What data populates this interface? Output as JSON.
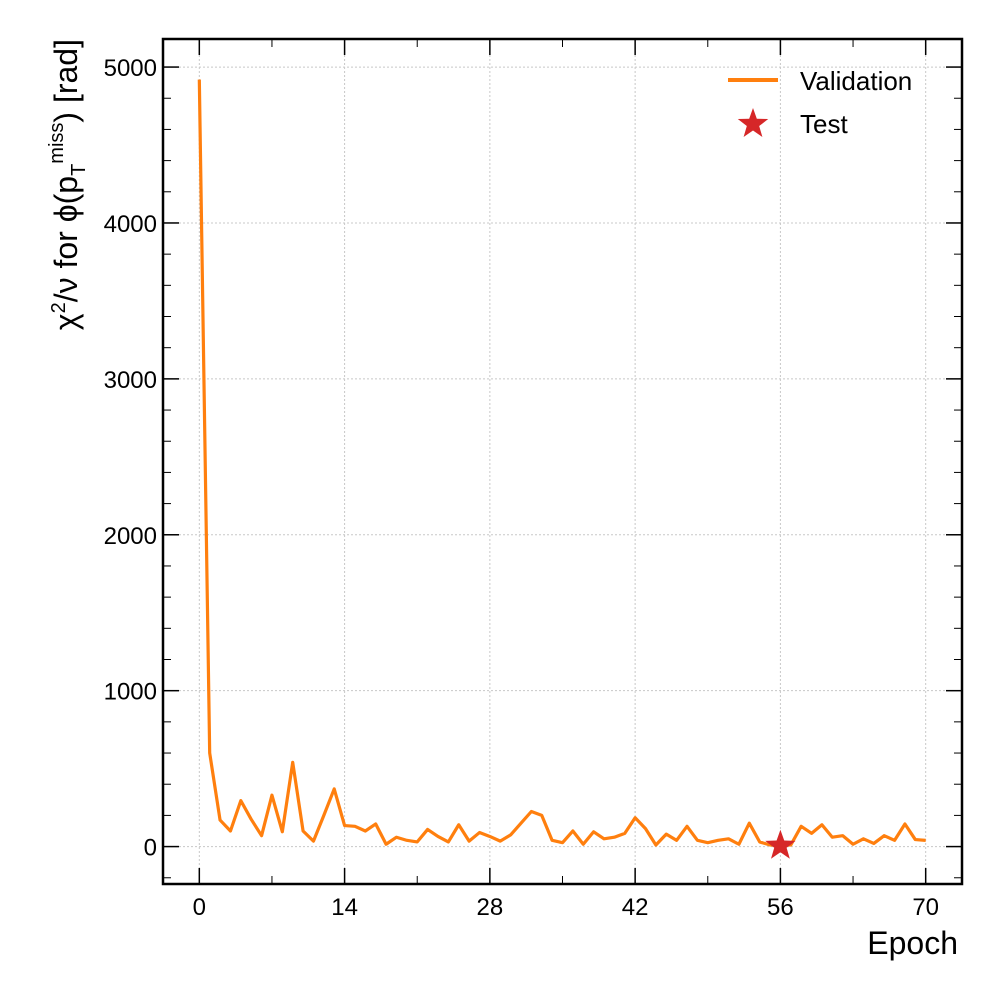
{
  "chart_data": {
    "type": "line",
    "xlabel": "Epoch",
    "ylabel": {
      "prefix": "χ",
      "sup": "2",
      "mid": "/ν for ϕ(p",
      "vec_sub": "T",
      "vec_sup": "miss",
      "suffix": ") [rad]"
    },
    "xlim": [
      -3.5,
      73.5
    ],
    "ylim": [
      -240,
      5180
    ],
    "xticks": [
      0,
      14,
      28,
      42,
      56,
      70
    ],
    "yticks": [
      0,
      1000,
      2000,
      3000,
      4000,
      5000
    ],
    "grid": true,
    "legend_position": "top-right",
    "colors": {
      "validation": "#ff7f0e",
      "test": "#d62728"
    },
    "series": [
      {
        "name": "Validation",
        "kind": "line",
        "x": [
          0,
          1,
          2,
          3,
          4,
          5,
          6,
          7,
          8,
          9,
          10,
          11,
          12,
          13,
          14,
          15,
          16,
          17,
          18,
          19,
          20,
          21,
          22,
          23,
          24,
          25,
          26,
          27,
          28,
          29,
          30,
          31,
          32,
          33,
          34,
          35,
          36,
          37,
          38,
          39,
          40,
          41,
          42,
          43,
          44,
          45,
          46,
          47,
          48,
          49,
          50,
          51,
          52,
          53,
          54,
          55,
          56,
          57,
          58,
          59,
          60,
          61,
          62,
          63,
          64,
          65,
          66,
          67,
          68,
          69,
          70
        ],
        "y": [
          4920,
          600,
          170,
          100,
          295,
          175,
          70,
          330,
          95,
          540,
          100,
          35,
          200,
          370,
          135,
          130,
          100,
          145,
          15,
          60,
          40,
          30,
          110,
          65,
          30,
          140,
          35,
          90,
          65,
          35,
          75,
          150,
          225,
          200,
          40,
          25,
          100,
          15,
          95,
          50,
          60,
          85,
          185,
          115,
          10,
          80,
          40,
          130,
          40,
          25,
          40,
          50,
          15,
          150,
          30,
          10,
          10,
          10,
          130,
          85,
          140,
          60,
          70,
          15,
          50,
          20,
          70,
          40,
          145,
          45,
          40
        ]
      },
      {
        "name": "Test",
        "kind": "scatter",
        "marker": "star",
        "x": [
          56
        ],
        "y": [
          5
        ]
      }
    ]
  }
}
